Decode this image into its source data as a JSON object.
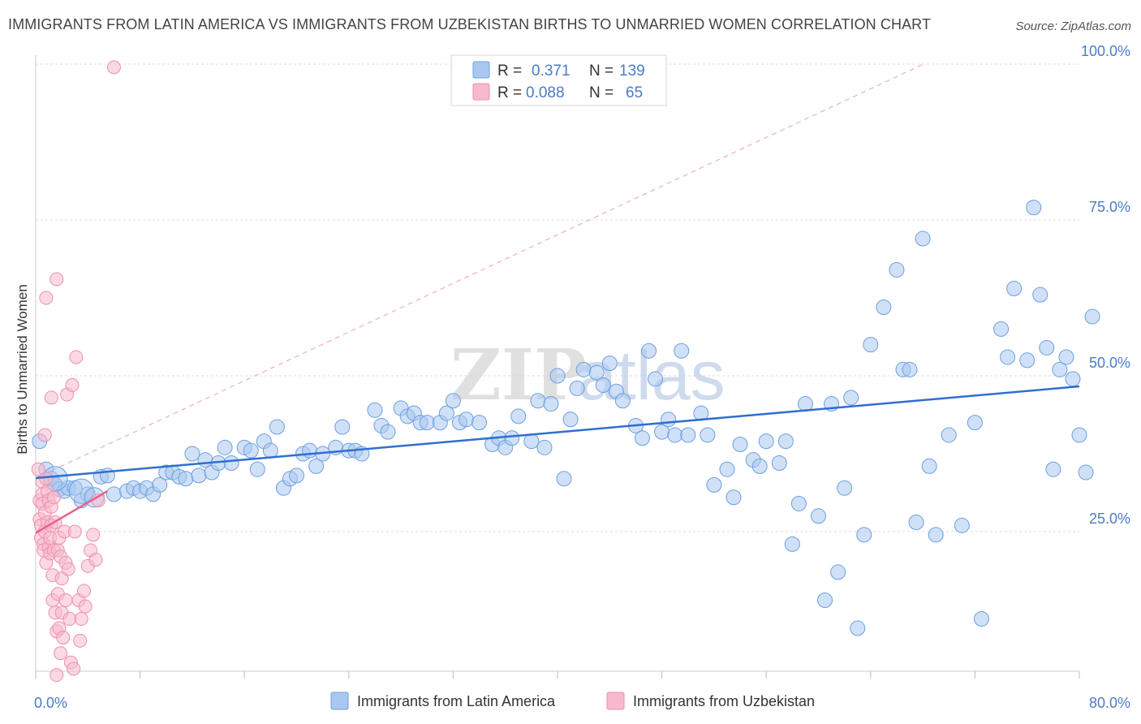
{
  "title": "IMMIGRANTS FROM LATIN AMERICA VS IMMIGRANTS FROM UZBEKISTAN BIRTHS TO UNMARRIED WOMEN CORRELATION CHART",
  "source": "Source: ZipAtlas.com",
  "watermark": "ZIPatlas",
  "colors": {
    "series1_fill": "#a9c8f0",
    "series1_stroke": "#6d9fe0",
    "series1_line": "#2f6fcf",
    "series2_fill": "#f7b9cc",
    "series2_stroke": "#ee8fae",
    "series2_line": "#e8608b",
    "grid": "#dddddd",
    "tick_text": "#4a7cc9"
  },
  "legend": {
    "r_label": "R =",
    "n_label": "N =",
    "entries": [
      {
        "r": "0.371",
        "n": "139"
      },
      {
        "r": "0.088",
        "n": "65"
      }
    ]
  },
  "chart_data": {
    "type": "scatter",
    "title": "IMMIGRANTS FROM LATIN AMERICA VS IMMIGRANTS FROM UZBEKISTAN BIRTHS TO UNMARRIED WOMEN CORRELATION CHART",
    "xlabel": "",
    "ylabel": "Births to Unmarried Women",
    "xlim": [
      0,
      80
    ],
    "ylim": [
      0,
      100
    ],
    "x_tick_labels": [
      "0.0%",
      "80.0%"
    ],
    "y_tick_labels": [
      "25.0%",
      "50.0%",
      "75.0%",
      "100.0%"
    ],
    "y_ticks": [
      25,
      50,
      75,
      100
    ],
    "grid": true,
    "legend_position": "top-center",
    "series": [
      {
        "name": "Immigrants from Latin America",
        "r": 0.371,
        "n": 139,
        "trend": {
          "x": [
            0,
            80
          ],
          "y": [
            33.6,
            48.3
          ]
        },
        "points": [
          [
            0.3,
            39.5
          ],
          [
            0.8,
            35
          ],
          [
            1.2,
            33.5
          ],
          [
            1.5,
            32.5
          ],
          [
            1.8,
            31.8
          ],
          [
            2.2,
            31.5
          ],
          [
            2.5,
            32
          ],
          [
            3,
            32
          ],
          [
            3.5,
            30
          ],
          [
            4,
            31
          ],
          [
            5,
            33.8
          ],
          [
            5.5,
            34
          ],
          [
            6,
            31
          ],
          [
            7,
            31.5
          ],
          [
            7.5,
            32
          ],
          [
            8,
            31.5
          ],
          [
            8.5,
            32
          ],
          [
            9,
            31
          ],
          [
            9.5,
            32.5
          ],
          [
            10,
            34.5
          ],
          [
            10.5,
            34.5
          ],
          [
            11,
            33.8
          ],
          [
            11.5,
            33.5
          ],
          [
            12,
            37.5
          ],
          [
            12.5,
            34
          ],
          [
            13,
            36.5
          ],
          [
            13.5,
            34.5
          ],
          [
            14,
            36
          ],
          [
            14.5,
            38.5
          ],
          [
            15,
            36
          ],
          [
            16,
            38.5
          ],
          [
            16.5,
            38
          ],
          [
            17,
            35
          ],
          [
            17.5,
            39.5
          ],
          [
            18,
            38
          ],
          [
            18.5,
            41.8
          ],
          [
            19,
            32
          ],
          [
            19.5,
            33.5
          ],
          [
            20,
            34
          ],
          [
            20.5,
            37.5
          ],
          [
            21,
            38
          ],
          [
            21.5,
            35.5
          ],
          [
            22,
            37.5
          ],
          [
            23,
            38.5
          ],
          [
            23.5,
            41.8
          ],
          [
            24,
            38
          ],
          [
            24.5,
            38
          ],
          [
            25,
            37.5
          ],
          [
            26,
            44.5
          ],
          [
            26.5,
            42
          ],
          [
            27,
            41
          ],
          [
            28,
            44.8
          ],
          [
            28.5,
            43.5
          ],
          [
            29,
            44
          ],
          [
            29.5,
            42.5
          ],
          [
            30,
            42.5
          ],
          [
            31,
            42.5
          ],
          [
            31.5,
            44
          ],
          [
            32,
            46
          ],
          [
            32.5,
            42.5
          ],
          [
            33,
            43
          ],
          [
            34,
            42.5
          ],
          [
            35,
            39
          ],
          [
            35.5,
            40
          ],
          [
            36,
            38.5
          ],
          [
            36.5,
            40
          ],
          [
            37,
            43.5
          ],
          [
            38,
            39.5
          ],
          [
            38.5,
            46
          ],
          [
            39,
            38.5
          ],
          [
            39.5,
            45.5
          ],
          [
            40,
            50
          ],
          [
            40.5,
            33.5
          ],
          [
            41,
            43
          ],
          [
            41.5,
            48
          ],
          [
            42,
            51
          ],
          [
            43,
            50.5
          ],
          [
            43.5,
            48.5
          ],
          [
            44,
            52
          ],
          [
            44.5,
            47.5
          ],
          [
            45,
            46
          ],
          [
            46,
            42
          ],
          [
            46.5,
            40
          ],
          [
            47,
            54
          ],
          [
            47.5,
            49.5
          ],
          [
            48,
            41
          ],
          [
            48.5,
            43
          ],
          [
            49,
            40.5
          ],
          [
            49.5,
            54
          ],
          [
            50,
            40.5
          ],
          [
            51,
            44
          ],
          [
            51.5,
            40.5
          ],
          [
            52,
            32.5
          ],
          [
            53,
            35
          ],
          [
            53.5,
            30.5
          ],
          [
            54,
            39
          ],
          [
            55,
            36.5
          ],
          [
            55.5,
            35.5
          ],
          [
            56,
            39.5
          ],
          [
            57,
            36
          ],
          [
            57.5,
            39.5
          ],
          [
            58,
            23
          ],
          [
            58.5,
            29.5
          ],
          [
            59,
            45.5
          ],
          [
            60,
            27.5
          ],
          [
            60.5,
            14
          ],
          [
            61,
            45.5
          ],
          [
            61.5,
            18.5
          ],
          [
            62,
            32
          ],
          [
            62.5,
            46.5
          ],
          [
            63,
            9.5
          ],
          [
            63.5,
            24.5
          ],
          [
            64,
            55
          ],
          [
            65,
            61
          ],
          [
            66,
            67
          ],
          [
            66.5,
            51
          ],
          [
            67,
            51
          ],
          [
            67.5,
            26.5
          ],
          [
            68,
            72
          ],
          [
            68.5,
            35.5
          ],
          [
            69,
            24.5
          ],
          [
            70,
            40.5
          ],
          [
            71,
            26
          ],
          [
            72,
            42.5
          ],
          [
            72.5,
            11
          ],
          [
            74,
            57.5
          ],
          [
            74.5,
            53
          ],
          [
            75,
            64
          ],
          [
            76,
            52.5
          ],
          [
            76.5,
            77
          ],
          [
            77,
            63
          ],
          [
            77.5,
            54.5
          ],
          [
            78,
            35
          ],
          [
            78.5,
            51
          ],
          [
            79,
            53
          ],
          [
            79.5,
            49.5
          ],
          [
            80,
            40.5
          ],
          [
            80.5,
            34.5
          ],
          [
            81,
            59.5
          ]
        ]
      },
      {
        "name": "Immigrants from Uzbekistan",
        "r": 0.088,
        "n": 65,
        "trend": {
          "x": [
            0,
            5.5
          ],
          "y": [
            24.8,
            31.5
          ]
        },
        "points": [
          [
            0.2,
            35
          ],
          [
            0.3,
            30
          ],
          [
            0.3,
            27
          ],
          [
            0.4,
            26
          ],
          [
            0.4,
            24
          ],
          [
            0.5,
            33
          ],
          [
            0.5,
            31
          ],
          [
            0.5,
            29.5
          ],
          [
            0.6,
            23
          ],
          [
            0.6,
            22
          ],
          [
            0.7,
            40.5
          ],
          [
            0.7,
            28
          ],
          [
            0.7,
            25
          ],
          [
            0.8,
            20
          ],
          [
            0.8,
            62.5
          ],
          [
            0.8,
            33.5
          ],
          [
            0.9,
            31.5
          ],
          [
            0.9,
            26.5
          ],
          [
            1,
            30
          ],
          [
            1,
            22.5
          ],
          [
            1.1,
            24
          ],
          [
            1.1,
            21.5
          ],
          [
            1.2,
            46.5
          ],
          [
            1.2,
            29
          ],
          [
            1.2,
            26
          ],
          [
            1.3,
            18
          ],
          [
            1.3,
            14
          ],
          [
            1.4,
            30.5
          ],
          [
            1.4,
            22
          ],
          [
            1.5,
            26.5
          ],
          [
            1.5,
            12
          ],
          [
            1.6,
            65.5
          ],
          [
            1.6,
            9
          ],
          [
            1.6,
            2
          ],
          [
            1.7,
            22
          ],
          [
            1.7,
            15
          ],
          [
            1.8,
            24
          ],
          [
            1.8,
            9.5
          ],
          [
            1.9,
            21
          ],
          [
            1.9,
            5.5
          ],
          [
            2,
            17.5
          ],
          [
            2,
            12
          ],
          [
            2.1,
            8
          ],
          [
            2.2,
            25
          ],
          [
            2.3,
            20
          ],
          [
            2.3,
            14
          ],
          [
            2.4,
            47
          ],
          [
            2.5,
            19
          ],
          [
            2.6,
            11
          ],
          [
            2.7,
            4
          ],
          [
            2.8,
            48.5
          ],
          [
            2.9,
            3
          ],
          [
            3,
            25
          ],
          [
            3.1,
            53
          ],
          [
            3.3,
            14
          ],
          [
            3.4,
            7.5
          ],
          [
            3.5,
            11
          ],
          [
            3.7,
            15.5
          ],
          [
            3.8,
            13
          ],
          [
            4,
            19.5
          ],
          [
            4.2,
            22
          ],
          [
            4.4,
            24.5
          ],
          [
            4.6,
            20.5
          ],
          [
            4.8,
            30
          ],
          [
            6,
            99.5
          ]
        ]
      }
    ]
  },
  "bottom_legend": {
    "items": [
      "Immigrants from Latin America",
      "Immigrants from Uzbekistan"
    ]
  }
}
